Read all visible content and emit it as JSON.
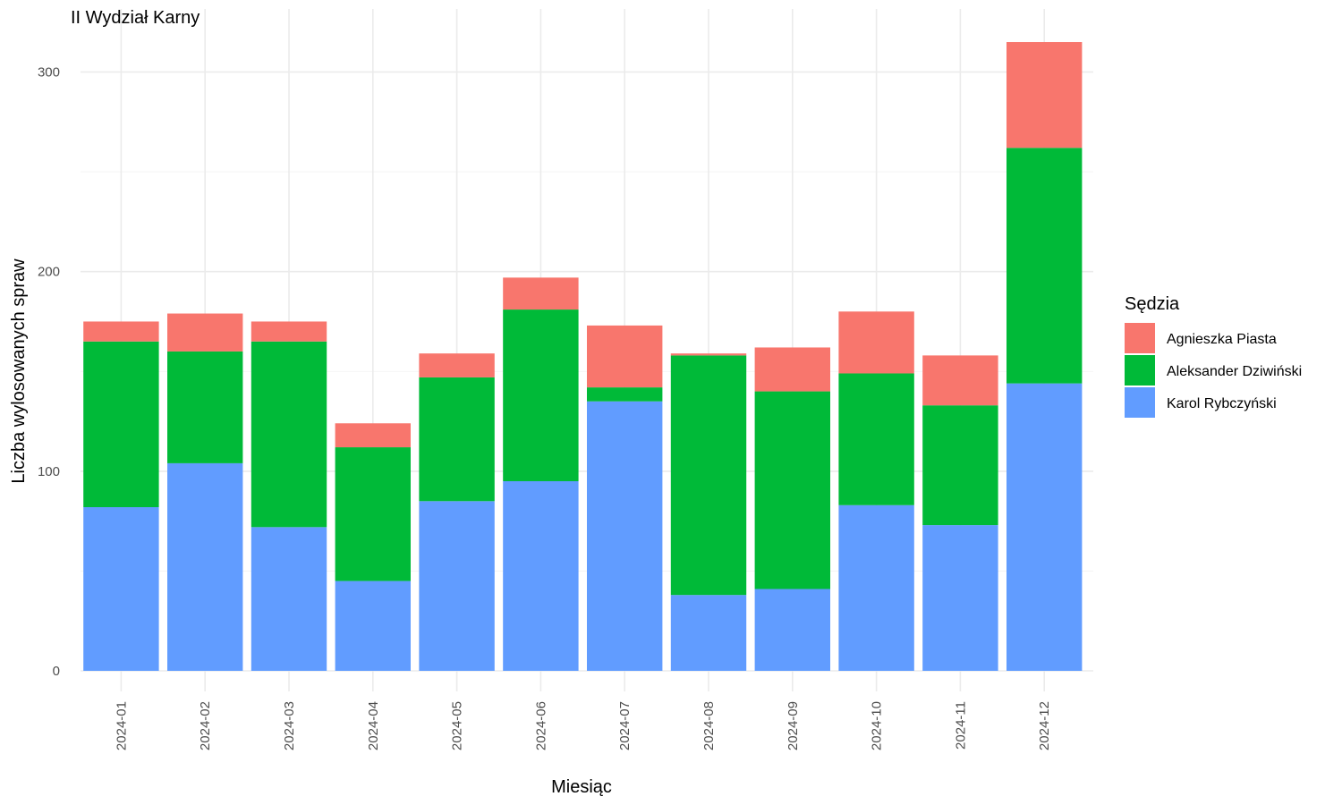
{
  "chart_data": {
    "type": "bar",
    "stacked": true,
    "title": "II Wydział Karny",
    "xlabel": "Miesiąc",
    "ylabel": "Liczba wylosowanych spraw",
    "ylim": [
      0,
      320
    ],
    "yticks": [
      0,
      100,
      200,
      300
    ],
    "grid": true,
    "legend_title": "Sędzia",
    "legend_position": "right",
    "categories": [
      "2024-01",
      "2024-02",
      "2024-03",
      "2024-04",
      "2024-05",
      "2024-06",
      "2024-07",
      "2024-08",
      "2024-09",
      "2024-10",
      "2024-11",
      "2024-12"
    ],
    "series": [
      {
        "name": "Karol Rybczyński",
        "color": "#619CFF",
        "values": [
          82,
          104,
          72,
          45,
          85,
          95,
          135,
          38,
          41,
          83,
          73,
          144
        ]
      },
      {
        "name": "Aleksander Dziwiński",
        "color": "#00BA38",
        "values": [
          83,
          56,
          93,
          67,
          62,
          86,
          7,
          120,
          99,
          66,
          60,
          118
        ]
      },
      {
        "name": "Agnieszka Piasta",
        "color": "#F8766D",
        "values": [
          10,
          19,
          10,
          12,
          12,
          16,
          31,
          1,
          22,
          31,
          25,
          53
        ]
      }
    ],
    "legend_order": [
      "Agnieszka Piasta",
      "Aleksander Dziwiński",
      "Karol Rybczyński"
    ]
  }
}
